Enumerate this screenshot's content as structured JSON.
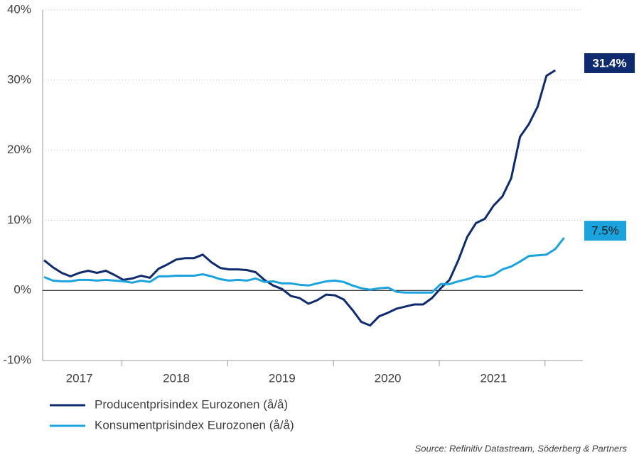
{
  "chart_data": {
    "type": "line",
    "categories": [
      null,
      null,
      null,
      null,
      "2017",
      null,
      null,
      null,
      null,
      null,
      null,
      null,
      null,
      null,
      null,
      "2018",
      null,
      null,
      null,
      null,
      null,
      null,
      null,
      null,
      null,
      null,
      null,
      "2019",
      null,
      null,
      null,
      null,
      null,
      null,
      null,
      null,
      null,
      null,
      null,
      "2020",
      null,
      null,
      null,
      null,
      null,
      null,
      null,
      null,
      null,
      null,
      null,
      "2021",
      null,
      null,
      null,
      null,
      null,
      null,
      null,
      null
    ],
    "series": [
      {
        "name": "Producentprisindex Eurozonen (å/å)",
        "color": "#0e2b6f",
        "values": [
          4.3,
          3.3,
          2.5,
          2.0,
          2.5,
          2.8,
          2.5,
          2.8,
          2.2,
          1.5,
          1.7,
          2.1,
          1.8,
          3.1,
          3.7,
          4.4,
          4.6,
          4.6,
          5.1,
          4.0,
          3.2,
          3.0,
          3.0,
          2.9,
          2.6,
          1.5,
          0.7,
          0.2,
          -0.8,
          -1.1,
          -1.9,
          -1.4,
          -0.6,
          -0.7,
          -1.3,
          -2.8,
          -4.5,
          -5.0,
          -3.7,
          -3.2,
          -2.6,
          -2.3,
          -2.0,
          -2.0,
          -1.1,
          0.3,
          1.5,
          4.3,
          7.6,
          9.6,
          10.2,
          12.1,
          13.4,
          16.0,
          21.9,
          23.7,
          26.2,
          30.6,
          31.4,
          null
        ],
        "value_labels": [
          null,
          null,
          null,
          null,
          null,
          null,
          null,
          null,
          null,
          null,
          null,
          null,
          null,
          null,
          null,
          null,
          null,
          null,
          null,
          null,
          null,
          null,
          null,
          null,
          null,
          null,
          null,
          null,
          null,
          null,
          null,
          null,
          null,
          null,
          null,
          null,
          null,
          null,
          null,
          null,
          null,
          null,
          null,
          null,
          null,
          null,
          null,
          null,
          null,
          null,
          null,
          null,
          null,
          null,
          null,
          null,
          null,
          null,
          "31.4%",
          null
        ]
      },
      {
        "name": "Konsumentprisindex Eurozonen (å/å)",
        "color": "#1ba3de",
        "values": [
          1.9,
          1.4,
          1.3,
          1.3,
          1.5,
          1.5,
          1.4,
          1.5,
          1.4,
          1.3,
          1.1,
          1.4,
          1.2,
          2.0,
          2.0,
          2.1,
          2.1,
          2.1,
          2.3,
          2.0,
          1.6,
          1.4,
          1.5,
          1.4,
          1.7,
          1.2,
          1.3,
          1.0,
          1.0,
          0.8,
          0.7,
          1.0,
          1.3,
          1.4,
          1.2,
          0.7,
          0.3,
          0.1,
          0.3,
          0.4,
          -0.2,
          -0.3,
          -0.3,
          -0.3,
          -0.3,
          0.9,
          0.9,
          1.3,
          1.6,
          2.0,
          1.9,
          2.2,
          3.0,
          3.4,
          4.1,
          4.9,
          5.0,
          5.1,
          5.9,
          7.5
        ],
        "value_labels": [
          null,
          null,
          null,
          null,
          null,
          null,
          null,
          null,
          null,
          null,
          null,
          null,
          null,
          null,
          null,
          null,
          null,
          null,
          null,
          null,
          null,
          null,
          null,
          null,
          null,
          null,
          null,
          null,
          null,
          null,
          null,
          null,
          null,
          null,
          null,
          null,
          null,
          null,
          null,
          null,
          null,
          null,
          null,
          null,
          null,
          null,
          null,
          null,
          null,
          null,
          null,
          null,
          null,
          null,
          null,
          null,
          null,
          null,
          null,
          "7.5%"
        ]
      }
    ],
    "ylim": [
      -10,
      40
    ],
    "yticks": [
      {
        "value": -10,
        "label": "-10%"
      },
      {
        "value": 0,
        "label": "0%"
      },
      {
        "value": 10,
        "label": "10%"
      },
      {
        "value": 20,
        "label": "20%"
      },
      {
        "value": 30,
        "label": "30%"
      },
      {
        "value": 40,
        "label": "40%"
      }
    ],
    "grid": true,
    "source": "Source: Refinitiv Datastream, Söderberg & Partners"
  }
}
